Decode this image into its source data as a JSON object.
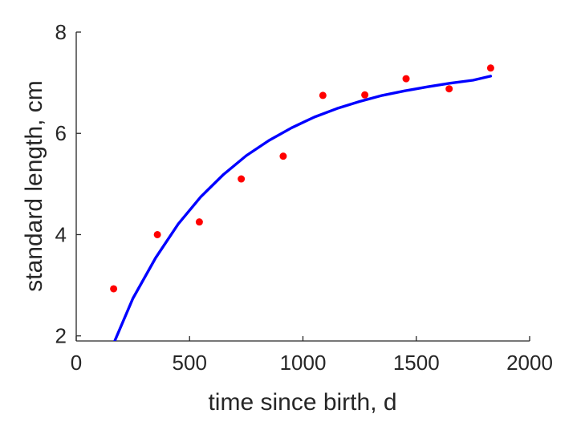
{
  "chart_data": {
    "type": "scatter",
    "title": "",
    "xlabel": "time since birth, d",
    "ylabel": "standard length, cm",
    "xlim": [
      0,
      2000
    ],
    "ylim": [
      1.9,
      8
    ],
    "xticks": [
      0,
      500,
      1000,
      1500,
      2000
    ],
    "yticks": [
      2,
      4,
      6,
      8
    ],
    "grid": false,
    "legend": "none",
    "series": [
      {
        "kind": "points",
        "color": "#ff0000",
        "x": [
          165,
          358,
          543,
          728,
          913,
          1088,
          1273,
          1455,
          1645,
          1828
        ],
        "y": [
          2.93,
          4.0,
          4.25,
          5.1,
          5.55,
          6.75,
          6.76,
          7.08,
          6.88,
          7.29
        ]
      },
      {
        "kind": "line",
        "color": "#0000ff",
        "x": [
          165,
          250,
          350,
          450,
          550,
          650,
          750,
          850,
          950,
          1050,
          1150,
          1250,
          1350,
          1450,
          1550,
          1650,
          1750,
          1828
        ],
        "y": [
          1.85,
          2.74,
          3.54,
          4.21,
          4.75,
          5.19,
          5.56,
          5.86,
          6.11,
          6.32,
          6.49,
          6.63,
          6.75,
          6.84,
          6.92,
          6.99,
          7.05,
          7.13
        ]
      }
    ]
  },
  "colors": {
    "axis": "#262626",
    "points": "#ff0000",
    "fit_line": "#0000ff"
  }
}
